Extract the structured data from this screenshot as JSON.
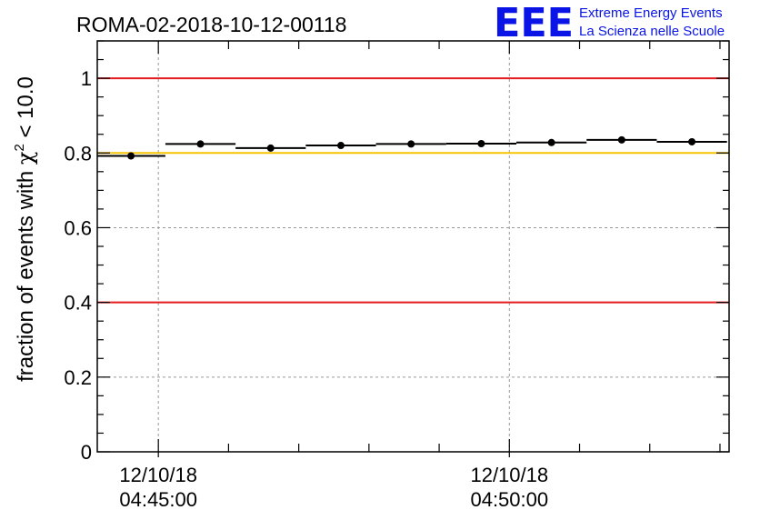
{
  "chart_data": {
    "type": "scatter",
    "title": "ROMA-02-2018-10-12-00118",
    "ylabel_prefix": "fraction of events with ",
    "ylabel_symbol": "χ",
    "ylabel_superscript": "2",
    "ylabel_suffix": " < 10.0",
    "xlabel": "",
    "ylim": [
      0,
      1.1
    ],
    "xlim_minutes": [
      -0.87,
      8.13
    ],
    "yticks": [
      {
        "value": 0,
        "label": "0"
      },
      {
        "value": 0.2,
        "label": "0.2"
      },
      {
        "value": 0.4,
        "label": "0.4"
      },
      {
        "value": 0.6,
        "label": "0.6"
      },
      {
        "value": 0.8,
        "label": "0.8"
      },
      {
        "value": 1,
        "label": "1"
      }
    ],
    "xticks": [
      {
        "minute": 0,
        "date": "12/10/18",
        "time": "04:45:00"
      },
      {
        "minute": 5,
        "date": "12/10/18",
        "time": "04:50:00"
      }
    ],
    "x_minor_tick_step_minutes": 1,
    "grid": true,
    "reference_lines": [
      {
        "value": 1.0,
        "color": "#e41a1c"
      },
      {
        "value": 0.8,
        "color": "#f5c400"
      },
      {
        "value": 0.4,
        "color": "#e41a1c"
      }
    ],
    "points": [
      {
        "x_start": -0.87,
        "x_end": 0.1,
        "x": -0.39,
        "y": 0.792
      },
      {
        "x_start": 0.1,
        "x_end": 1.1,
        "x": 0.6,
        "y": 0.824
      },
      {
        "x_start": 1.1,
        "x_end": 2.1,
        "x": 1.6,
        "y": 0.813
      },
      {
        "x_start": 2.1,
        "x_end": 3.1,
        "x": 2.6,
        "y": 0.82
      },
      {
        "x_start": 3.1,
        "x_end": 4.1,
        "x": 3.6,
        "y": 0.824
      },
      {
        "x_start": 4.1,
        "x_end": 5.1,
        "x": 4.6,
        "y": 0.825
      },
      {
        "x_start": 5.1,
        "x_end": 6.1,
        "x": 5.6,
        "y": 0.828
      },
      {
        "x_start": 6.1,
        "x_end": 7.1,
        "x": 6.6,
        "y": 0.835
      },
      {
        "x_start": 7.1,
        "x_end": 8.1,
        "x": 7.6,
        "y": 0.83
      }
    ]
  },
  "logo": {
    "mark": "EEE",
    "line1": "Extreme Energy Events",
    "line2": "La Scienza nelle Scuole",
    "color": "#0a14e6"
  }
}
